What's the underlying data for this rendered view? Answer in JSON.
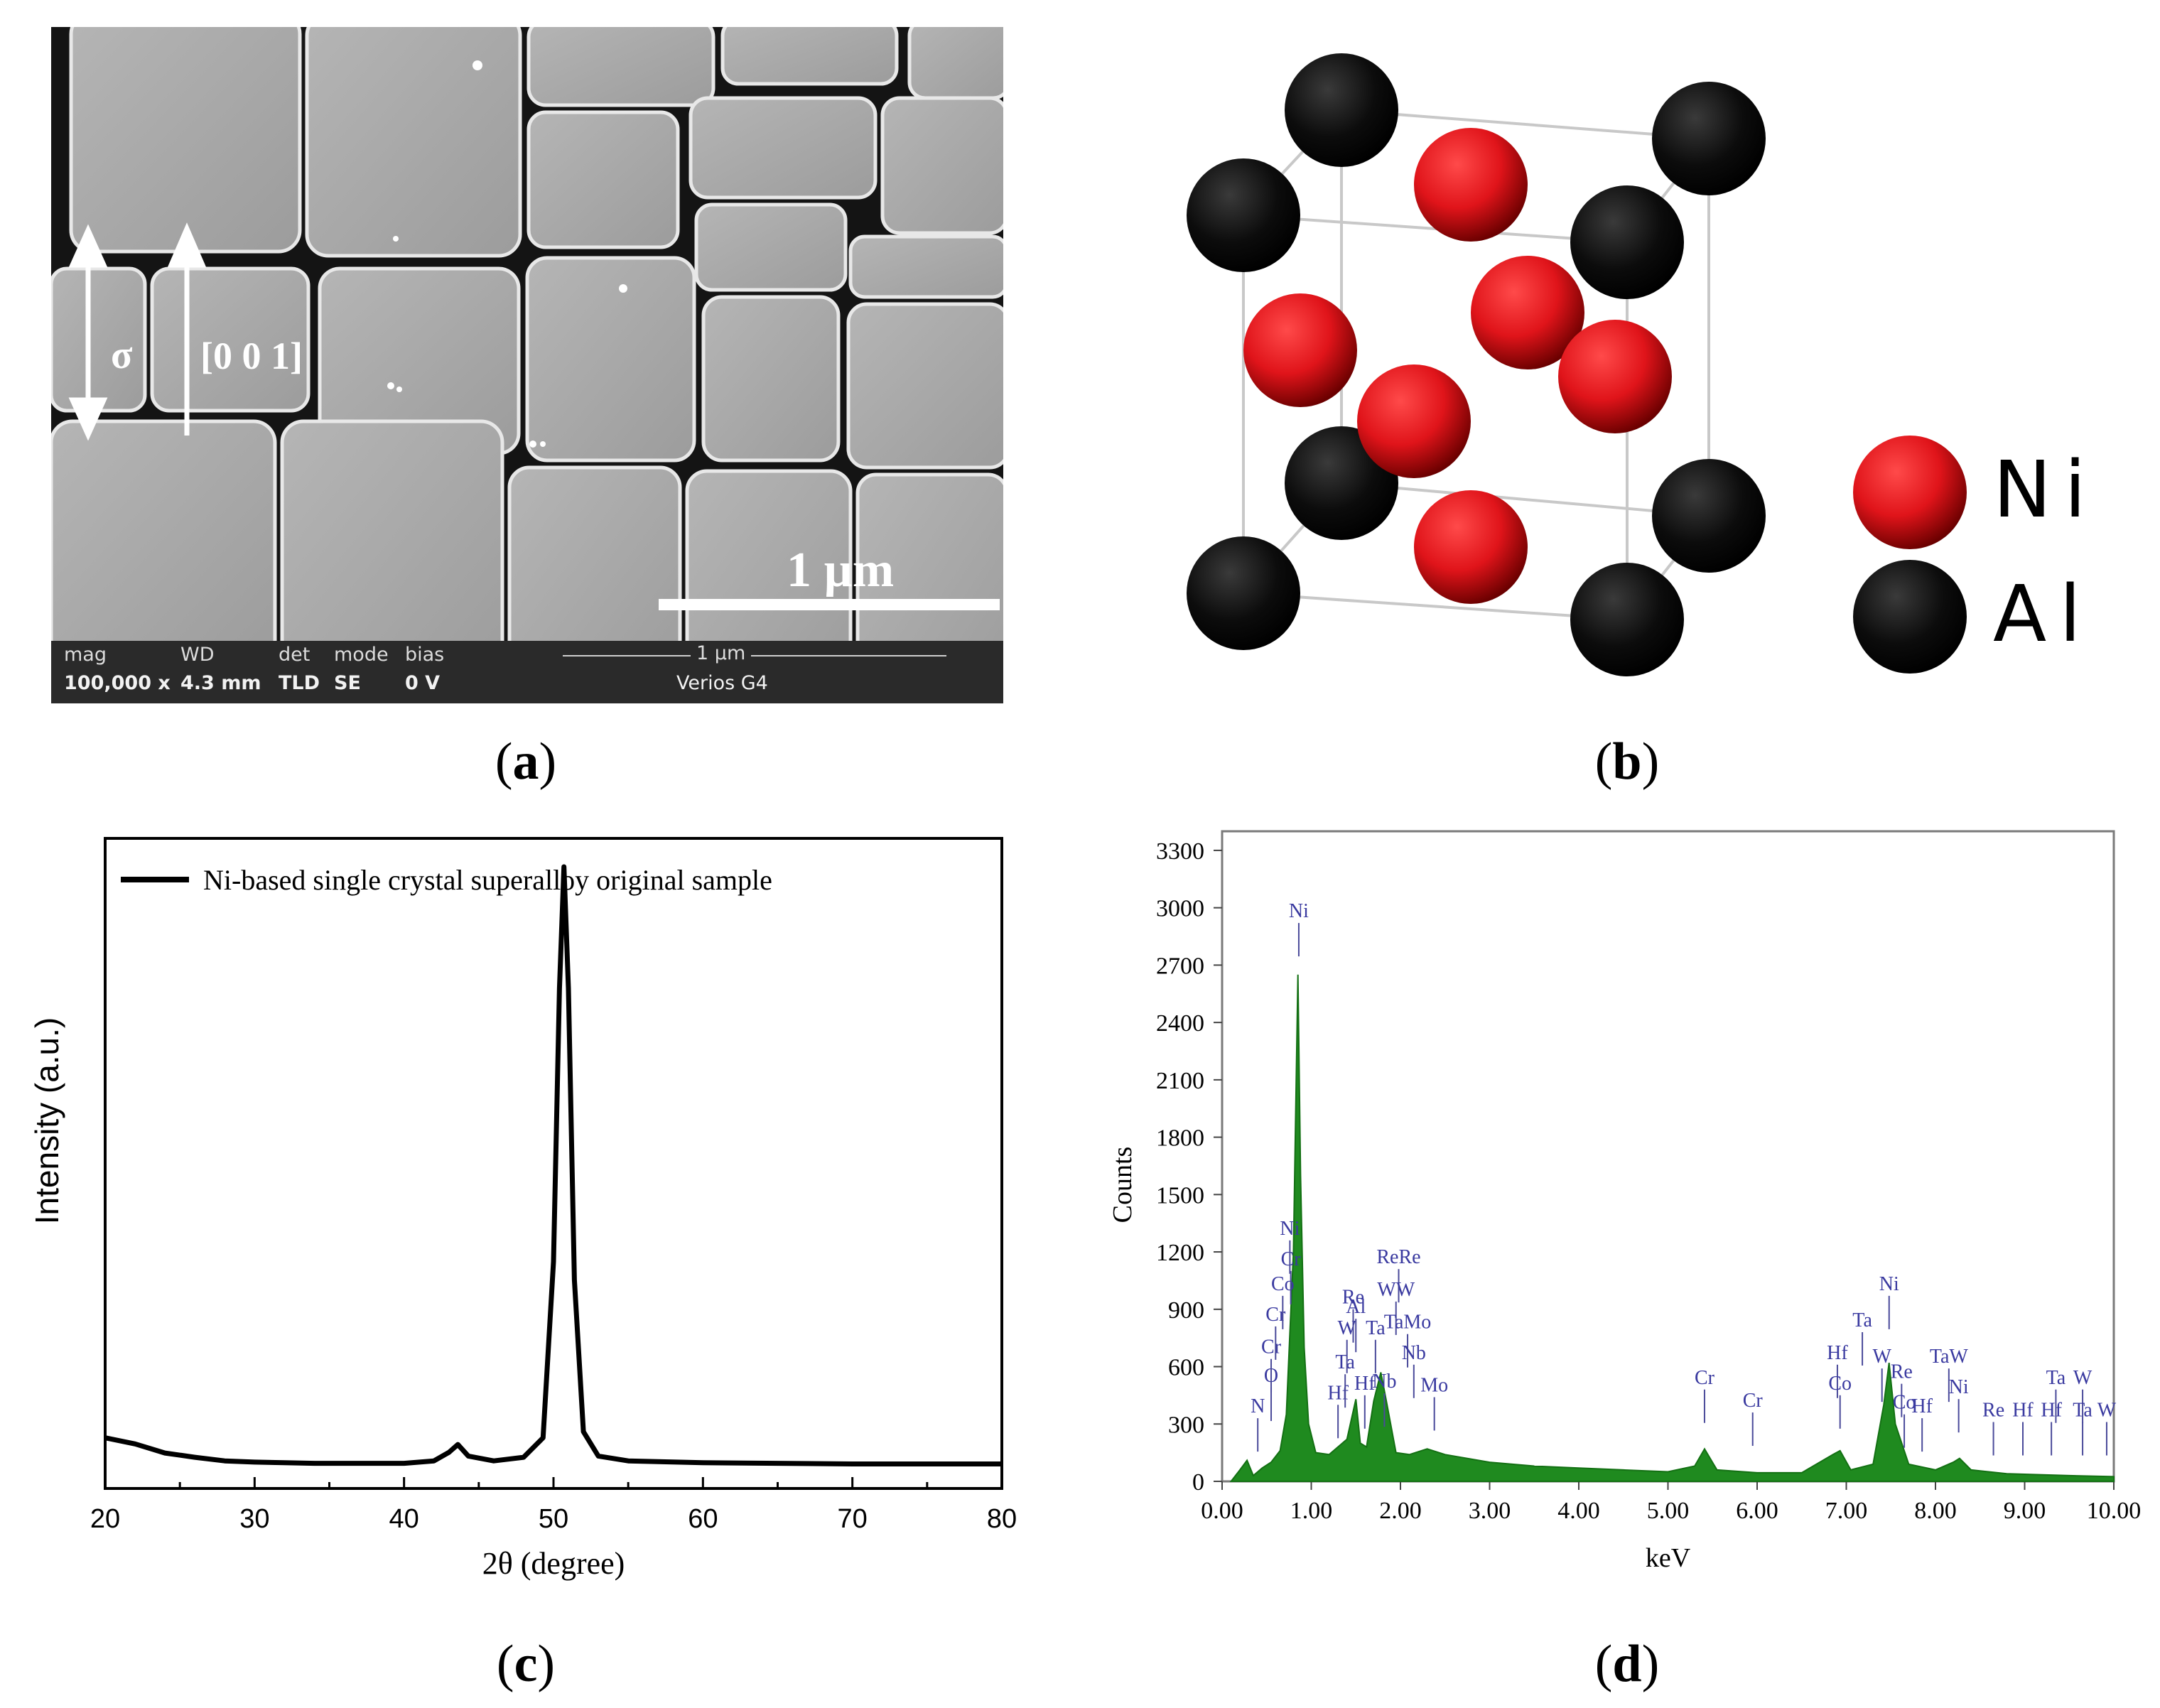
{
  "panel_a": {
    "caption": "a",
    "stress_label": "σ",
    "direction_label": "[0 0 1]",
    "scalebar_label": "1 µm",
    "info": {
      "mag_label": "mag",
      "mag_value": "100,000 x",
      "wd_label": "WD",
      "wd_value": "4.3 mm",
      "det_label": "det",
      "det_value": "TLD",
      "mode_label": "mode",
      "mode_value": "SE",
      "bias_label": "bias",
      "bias_value": "0 V",
      "scale_text": "1 µm",
      "instrument": "Verios G4"
    }
  },
  "panel_b": {
    "caption": "b",
    "legend": [
      {
        "label": "Ni",
        "color": "#e0141a"
      },
      {
        "label": "Al",
        "color": "#111111"
      }
    ]
  },
  "chart_data": [
    {
      "panel": "c",
      "type": "line",
      "caption": "c",
      "xlabel": "2θ (degree)",
      "ylabel": "Intensity (a.u.)",
      "xlim": [
        20,
        80
      ],
      "xticks": [
        20,
        30,
        40,
        50,
        60,
        70,
        80
      ],
      "ylim": [
        0,
        100
      ],
      "legend_position": "top-left",
      "series": [
        {
          "name": "Ni-based single crystal superalloy original sample",
          "color": "#000000",
          "x": [
            20,
            22,
            24,
            26,
            28,
            30,
            32,
            34,
            36,
            38,
            40,
            42,
            43,
            43.6,
            44.3,
            46,
            48,
            49.3,
            50.0,
            50.4,
            50.7,
            51.0,
            51.4,
            52.0,
            53,
            55,
            60,
            65,
            70,
            75,
            80
          ],
          "values": [
            6.0,
            5.0,
            3.5,
            2.8,
            2.2,
            2.0,
            1.9,
            1.8,
            1.8,
            1.8,
            1.8,
            2.2,
            3.6,
            4.9,
            3.0,
            2.2,
            2.8,
            6.0,
            35,
            80,
            100,
            80,
            32,
            7,
            3,
            2.2,
            1.9,
            1.8,
            1.7,
            1.7,
            1.7
          ]
        }
      ]
    },
    {
      "panel": "d",
      "type": "area",
      "caption": "d",
      "xlabel": "keV",
      "ylabel": "Counts",
      "xlim": [
        0,
        10
      ],
      "ylim": [
        0,
        3400
      ],
      "xticks": [
        "0.00",
        "1.00",
        "2.00",
        "3.00",
        "4.00",
        "5.00",
        "6.00",
        "7.00",
        "8.00",
        "9.00",
        "10.00"
      ],
      "yticks": [
        0,
        300,
        600,
        900,
        1200,
        1500,
        1800,
        2100,
        2400,
        2700,
        3000,
        3300
      ],
      "series": [
        {
          "color": "#1f8a1f",
          "x": [
            0.1,
            0.2,
            0.28,
            0.35,
            0.45,
            0.55,
            0.65,
            0.72,
            0.8,
            0.85,
            0.88,
            0.92,
            0.97,
            1.05,
            1.2,
            1.4,
            1.5,
            1.55,
            1.62,
            1.7,
            1.78,
            1.85,
            1.95,
            2.1,
            2.3,
            2.5,
            3.0,
            3.5,
            4.0,
            4.5,
            5.0,
            5.3,
            5.41,
            5.55,
            6.0,
            6.5,
            6.85,
            6.93,
            7.05,
            7.3,
            7.42,
            7.48,
            7.55,
            7.7,
            8.0,
            8.2,
            8.27,
            8.4,
            8.8,
            9.5,
            10.0
          ],
          "values": [
            0,
            60,
            110,
            30,
            70,
            100,
            160,
            350,
            1200,
            2650,
            1600,
            700,
            300,
            150,
            140,
            220,
            430,
            200,
            180,
            420,
            570,
            400,
            150,
            140,
            170,
            140,
            100,
            80,
            70,
            60,
            50,
            80,
            170,
            60,
            45,
            45,
            140,
            160,
            60,
            90,
            400,
            620,
            300,
            90,
            60,
            100,
            120,
            60,
            40,
            30,
            25
          ]
        }
      ],
      "element_labels": [
        {
          "text": "Ni",
          "x": 0.86,
          "y": 2950
        },
        {
          "text": "N",
          "x": 0.4,
          "y": 360
        },
        {
          "text": "O",
          "x": 0.55,
          "y": 520
        },
        {
          "text": "Cr",
          "x": 0.55,
          "y": 670
        },
        {
          "text": "Cr",
          "x": 0.6,
          "y": 840
        },
        {
          "text": "Co",
          "x": 0.68,
          "y": 1000
        },
        {
          "text": "Cr",
          "x": 0.77,
          "y": 1130
        },
        {
          "text": "Ni",
          "x": 0.76,
          "y": 1290
        },
        {
          "text": "Hf",
          "x": 1.3,
          "y": 430
        },
        {
          "text": "Ta",
          "x": 1.38,
          "y": 590
        },
        {
          "text": "W",
          "x": 1.4,
          "y": 770
        },
        {
          "text": "Al",
          "x": 1.5,
          "y": 880
        },
        {
          "text": "Re",
          "x": 1.47,
          "y": 930
        },
        {
          "text": "Hf",
          "x": 1.6,
          "y": 480
        },
        {
          "text": "Ta",
          "x": 1.72,
          "y": 770
        },
        {
          "text": "Nb",
          "x": 1.82,
          "y": 490
        },
        {
          "text": "ReRe",
          "x": 1.98,
          "y": 1140
        },
        {
          "text": "WW",
          "x": 1.95,
          "y": 970
        },
        {
          "text": "TaMo",
          "x": 2.08,
          "y": 800
        },
        {
          "text": "Nb",
          "x": 2.15,
          "y": 640
        },
        {
          "text": "Mo",
          "x": 2.38,
          "y": 470
        },
        {
          "text": "Cr",
          "x": 5.41,
          "y": 510
        },
        {
          "text": "Cr",
          "x": 5.95,
          "y": 390
        },
        {
          "text": "Hf",
          "x": 6.9,
          "y": 640
        },
        {
          "text": "Co",
          "x": 6.93,
          "y": 480
        },
        {
          "text": "Ta",
          "x": 7.18,
          "y": 810
        },
        {
          "text": "W",
          "x": 7.4,
          "y": 620
        },
        {
          "text": "Ni",
          "x": 7.48,
          "y": 1000
        },
        {
          "text": "Re",
          "x": 7.62,
          "y": 540
        },
        {
          "text": "Co",
          "x": 7.65,
          "y": 380
        },
        {
          "text": "Hf",
          "x": 7.85,
          "y": 360
        },
        {
          "text": "TaW",
          "x": 8.15,
          "y": 620
        },
        {
          "text": "Ni",
          "x": 8.26,
          "y": 460
        },
        {
          "text": "Re",
          "x": 8.65,
          "y": 340
        },
        {
          "text": "Hf",
          "x": 8.98,
          "y": 340
        },
        {
          "text": "Hf",
          "x": 9.3,
          "y": 340
        },
        {
          "text": "Ta",
          "x": 9.35,
          "y": 510
        },
        {
          "text": "W",
          "x": 9.65,
          "y": 510
        },
        {
          "text": "Ta",
          "x": 9.65,
          "y": 340
        },
        {
          "text": "W",
          "x": 9.92,
          "y": 340
        }
      ]
    }
  ]
}
